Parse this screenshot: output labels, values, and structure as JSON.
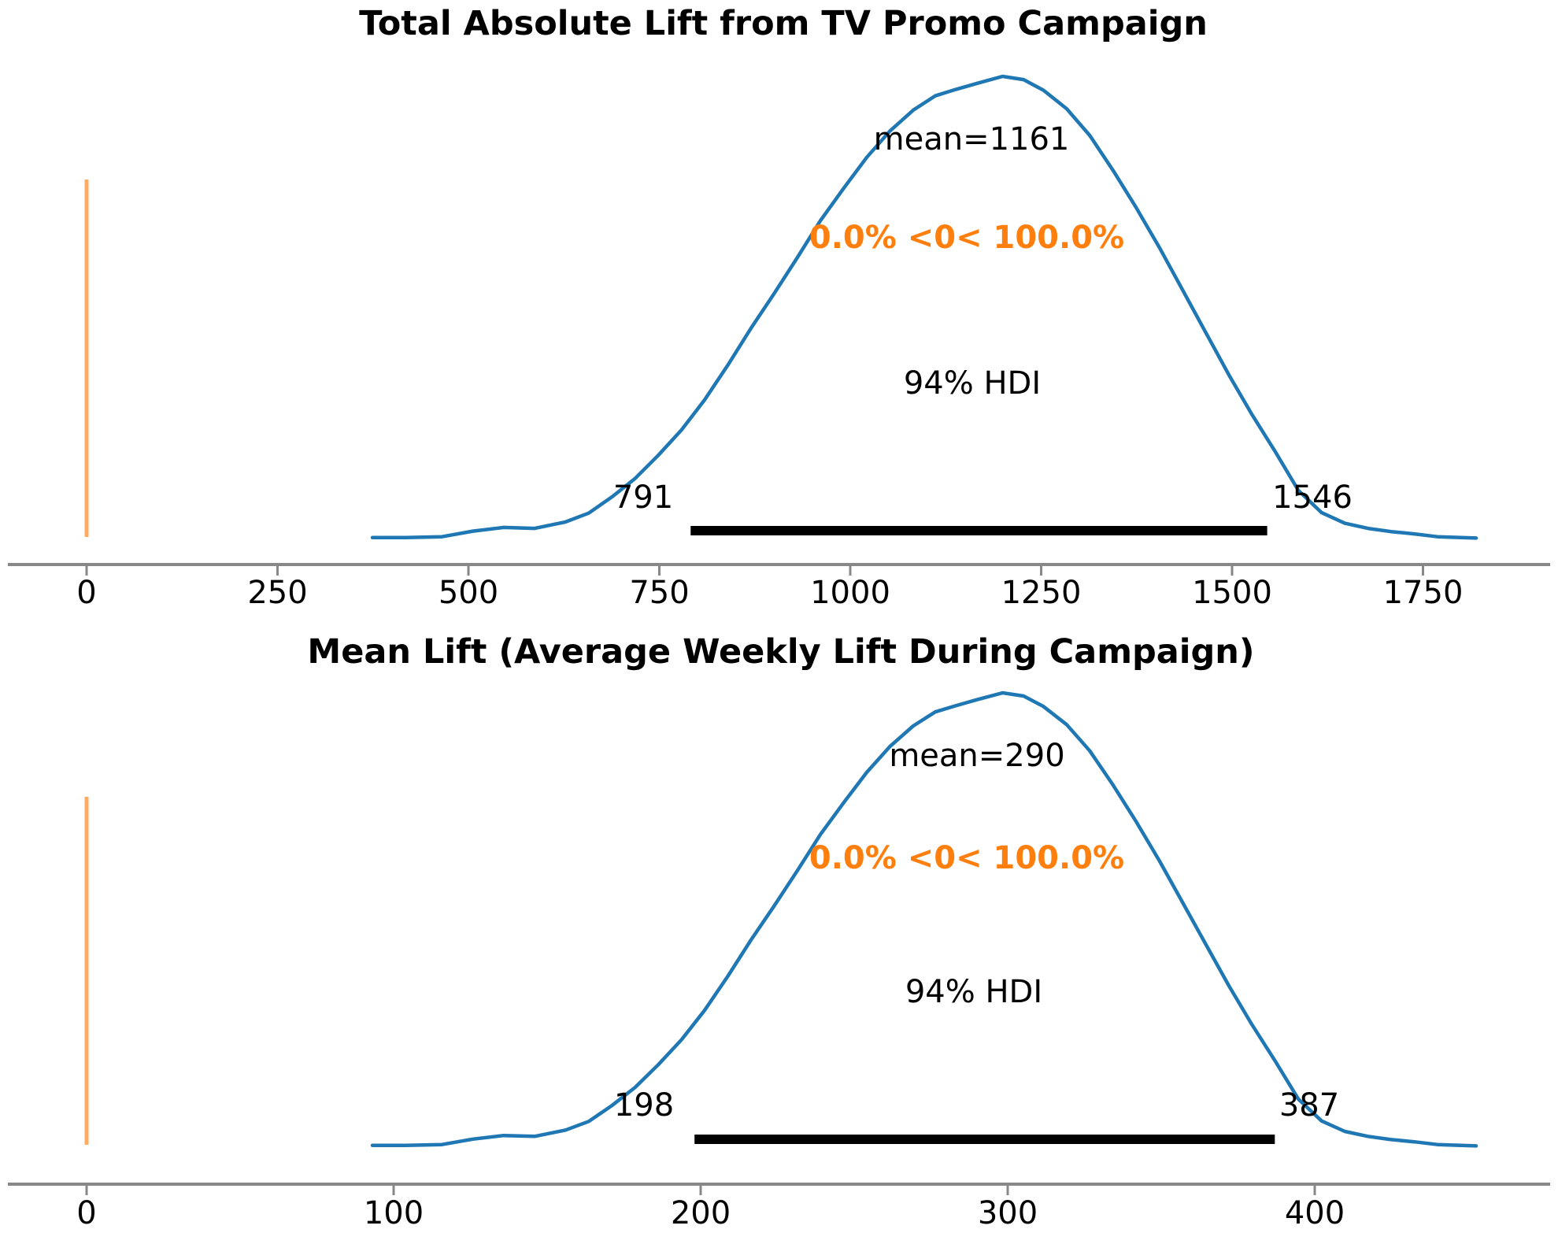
{
  "figure": {
    "background": "#ffffff",
    "kind": "arviz-posterior-plot",
    "n_subplots": 2
  },
  "colors": {
    "density_line": "#1f77b4",
    "ref_line": "#ff7f0e",
    "ref_line_alpha": 0.65,
    "ref_text": "#ff7f0e",
    "hdi_bar": "#000000",
    "axis": "#888888",
    "text": "#000000"
  },
  "chart_data": [
    {
      "type": "area",
      "subtype": "posterior-kde",
      "title": "Total Absolute Lift from TV Promo Campaign",
      "mean": 1161,
      "mean_label": "mean=1161",
      "ref_value": 0,
      "ref_label": "0.0% <0< 100.0%",
      "hdi_probability": "94%",
      "hdi_label": "94% HDI",
      "hdi": [
        791,
        1546
      ],
      "hdi_lo_label": "791",
      "hdi_hi_label": "1546",
      "x_ticks": [
        0,
        250,
        500,
        750,
        1000,
        1250,
        1500,
        1750
      ],
      "x_tick_labels": [
        "0",
        "250",
        "500",
        "750",
        "1000",
        "1250",
        "1500",
        "1750"
      ],
      "kde_x_range": [
        376,
        1822
      ],
      "grid": false,
      "legend": false
    },
    {
      "type": "area",
      "subtype": "posterior-kde",
      "title": "Mean Lift (Average Weekly Lift During Campaign)",
      "mean": 290,
      "mean_label": "mean=290",
      "ref_value": 0,
      "ref_label": "0.0% <0< 100.0%",
      "hdi_probability": "94%",
      "hdi_label": "94% HDI",
      "hdi": [
        198,
        387
      ],
      "hdi_lo_label": "198",
      "hdi_hi_label": "387",
      "x_ticks": [
        0,
        100,
        200,
        300,
        400
      ],
      "x_tick_labels": [
        "0",
        "100",
        "200",
        "300",
        "400"
      ],
      "kde_x_range": [
        94,
        454
      ],
      "grid": false,
      "legend": false
    }
  ],
  "kde_shape": [
    [
      0.0,
      0.002
    ],
    [
      0.03,
      0.002
    ],
    [
      0.063,
      0.004
    ],
    [
      0.091,
      0.016
    ],
    [
      0.119,
      0.024
    ],
    [
      0.147,
      0.022
    ],
    [
      0.175,
      0.036
    ],
    [
      0.196,
      0.055
    ],
    [
      0.217,
      0.09
    ],
    [
      0.238,
      0.13
    ],
    [
      0.259,
      0.18
    ],
    [
      0.28,
      0.235
    ],
    [
      0.301,
      0.3
    ],
    [
      0.322,
      0.375
    ],
    [
      0.343,
      0.455
    ],
    [
      0.364,
      0.53
    ],
    [
      0.385,
      0.608
    ],
    [
      0.406,
      0.688
    ],
    [
      0.427,
      0.758
    ],
    [
      0.448,
      0.825
    ],
    [
      0.469,
      0.882
    ],
    [
      0.49,
      0.927
    ],
    [
      0.51,
      0.958
    ],
    [
      0.529,
      0.972
    ],
    [
      0.548,
      0.985
    ],
    [
      0.571,
      1.0
    ],
    [
      0.59,
      0.993
    ],
    [
      0.608,
      0.97
    ],
    [
      0.629,
      0.93
    ],
    [
      0.65,
      0.872
    ],
    [
      0.671,
      0.797
    ],
    [
      0.692,
      0.716
    ],
    [
      0.713,
      0.63
    ],
    [
      0.734,
      0.538
    ],
    [
      0.755,
      0.446
    ],
    [
      0.776,
      0.354
    ],
    [
      0.797,
      0.268
    ],
    [
      0.818,
      0.188
    ],
    [
      0.839,
      0.104
    ],
    [
      0.86,
      0.056
    ],
    [
      0.881,
      0.033
    ],
    [
      0.902,
      0.022
    ],
    [
      0.923,
      0.015
    ],
    [
      0.944,
      0.01
    ],
    [
      0.965,
      0.004
    ],
    [
      1.0,
      0.001
    ]
  ]
}
